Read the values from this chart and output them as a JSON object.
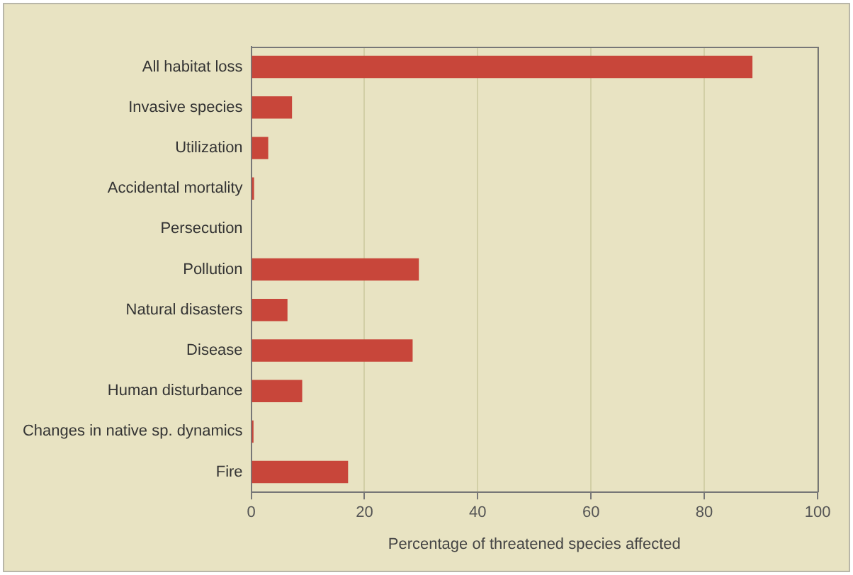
{
  "chart_data": {
    "type": "bar",
    "orientation": "horizontal",
    "categories": [
      "All habitat loss",
      "Invasive species",
      "Utilization",
      "Accidental mortality",
      "Persecution",
      "Pollution",
      "Natural disasters",
      "Disease",
      "Human disturbance",
      "Changes in native sp. dynamics",
      "Fire"
    ],
    "values": [
      88.5,
      7.2,
      3.0,
      0.5,
      0,
      29.6,
      6.4,
      28.5,
      9.0,
      0.4,
      17.1
    ],
    "color": "#c8463a",
    "xlabel": "Percentage of threatened species affected",
    "xlim": [
      0,
      100
    ],
    "xticks": [
      0,
      20,
      40,
      60,
      80,
      100
    ],
    "grid": "x",
    "legend": false
  }
}
